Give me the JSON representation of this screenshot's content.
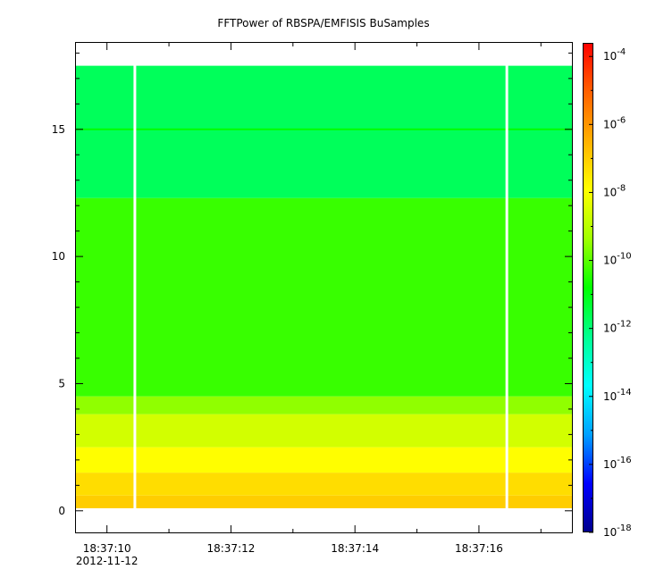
{
  "chart_data": {
    "type": "heatmap",
    "title": "FFTPower of RBSPA/EMFISIS  BuSamples",
    "xlabel": "",
    "ylabel": "",
    "x_ticks": [
      {
        "label": "18:37:10",
        "sublabel": "2012-11-12",
        "t": 10
      },
      {
        "label": "18:37:12",
        "t": 12
      },
      {
        "label": "18:37:14",
        "t": 14
      },
      {
        "label": "18:37:16",
        "t": 16
      }
    ],
    "x_minor_ticks": [
      11,
      13,
      15,
      17
    ],
    "xlim": [
      9.5,
      17.5
    ],
    "y_ticks": [
      0,
      5,
      10,
      15
    ],
    "ylim": [
      -0.85,
      18.4
    ],
    "data_y_range": [
      0.1,
      17.5
    ],
    "gap_times": [
      10.45,
      16.45
    ],
    "bands": [
      {
        "y0": 0.1,
        "y1": 0.6,
        "log_power": -7.0
      },
      {
        "y0": 0.6,
        "y1": 1.5,
        "log_power": -7.3
      },
      {
        "y0": 1.5,
        "y1": 2.5,
        "log_power": -7.9
      },
      {
        "y0": 2.5,
        "y1": 3.8,
        "log_power": -8.6
      },
      {
        "y0": 3.8,
        "y1": 4.5,
        "log_power": -9.5
      },
      {
        "y0": 4.5,
        "y1": 12.3,
        "log_power": -10.3
      },
      {
        "y0": 12.3,
        "y1": 17.5,
        "log_power": -11.7
      }
    ],
    "line_features": [
      {
        "y": 15.0,
        "log_power": -10.8
      }
    ],
    "colorbar": {
      "scale": "log",
      "range": [
        -18,
        -3.6
      ],
      "tick_exponents": [
        -4,
        -6,
        -8,
        -10,
        -12,
        -14,
        -16,
        -18
      ],
      "colormap": [
        "#00008b",
        "#0000ff",
        "#00a0ff",
        "#00ffff",
        "#00ff90",
        "#00ff00",
        "#a0ff00",
        "#ffff00",
        "#ffb000",
        "#ff6000",
        "#ff0000"
      ]
    }
  }
}
